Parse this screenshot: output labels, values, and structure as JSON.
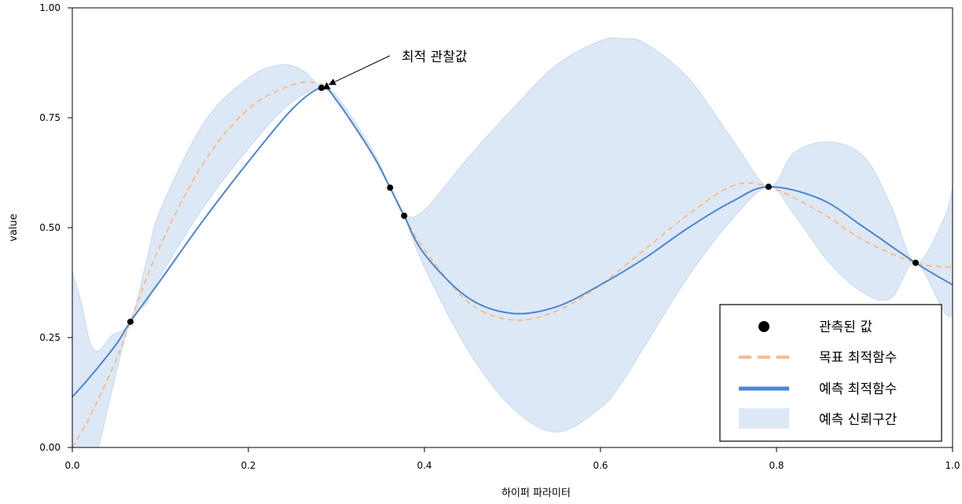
{
  "chart_data": {
    "type": "line",
    "title": "",
    "xlabel": "하이퍼 파라미터",
    "ylabel": "value",
    "xlim": [
      0,
      1
    ],
    "ylim": [
      0,
      1
    ],
    "xticks": [
      0.0,
      0.2,
      0.4,
      0.6,
      0.8,
      1.0
    ],
    "xtick_labels": [
      "0.0",
      "0.2",
      "0.4",
      "0.6",
      "0.8",
      "1.0"
    ],
    "yticks": [
      0.0,
      0.25,
      0.5,
      0.75,
      1.0
    ],
    "ytick_labels": [
      "0.00",
      "0.25",
      "0.50",
      "0.75",
      "1.00"
    ],
    "grid": false,
    "legend_position": "bottom-right",
    "colors": {
      "observed": "#000000",
      "target": "#f8bc8c",
      "predicted": "#4a86d2",
      "band": "#dde8f6",
      "band_edge": "#c6d9ef"
    },
    "series": [
      {
        "name": "관측된 값",
        "kind": "scatter",
        "x": [
          0.066,
          0.283,
          0.361,
          0.377,
          0.791,
          0.958
        ],
        "y": [
          0.286,
          0.818,
          0.591,
          0.527,
          0.593,
          0.42
        ]
      },
      {
        "name": "목표 최적함수",
        "kind": "line-dashed",
        "x": [
          0.0,
          0.02,
          0.05,
          0.066,
          0.1,
          0.15,
          0.2,
          0.25,
          0.283,
          0.3,
          0.34,
          0.361,
          0.377,
          0.4,
          0.45,
          0.5,
          0.55,
          0.6,
          0.65,
          0.7,
          0.75,
          0.791,
          0.85,
          0.9,
          0.958,
          1.0
        ],
        "y": [
          0.0,
          0.07,
          0.2,
          0.286,
          0.46,
          0.65,
          0.77,
          0.825,
          0.826,
          0.79,
          0.67,
          0.59,
          0.527,
          0.45,
          0.33,
          0.29,
          0.31,
          0.37,
          0.45,
          0.53,
          0.595,
          0.593,
          0.535,
          0.47,
          0.42,
          0.41
        ]
      },
      {
        "name": "예측 최적함수",
        "kind": "line",
        "x": [
          0.0,
          0.02,
          0.05,
          0.066,
          0.1,
          0.15,
          0.2,
          0.25,
          0.283,
          0.3,
          0.34,
          0.361,
          0.377,
          0.4,
          0.45,
          0.5,
          0.55,
          0.6,
          0.65,
          0.7,
          0.75,
          0.791,
          0.85,
          0.9,
          0.958,
          1.0
        ],
        "y": [
          0.115,
          0.16,
          0.235,
          0.286,
          0.38,
          0.52,
          0.65,
          0.77,
          0.818,
          0.79,
          0.67,
          0.591,
          0.527,
          0.44,
          0.34,
          0.305,
          0.32,
          0.37,
          0.43,
          0.5,
          0.56,
          0.593,
          0.565,
          0.5,
          0.42,
          0.37
        ]
      },
      {
        "name": "예측 신뢰구간",
        "kind": "band",
        "x": [
          0.0,
          0.01,
          0.02,
          0.03,
          0.045,
          0.066,
          0.085,
          0.1,
          0.15,
          0.2,
          0.235,
          0.26,
          0.283,
          0.3,
          0.34,
          0.361,
          0.377,
          0.4,
          0.45,
          0.5,
          0.55,
          0.6,
          0.625,
          0.65,
          0.7,
          0.75,
          0.791,
          0.82,
          0.86,
          0.9,
          0.93,
          0.958,
          0.99,
          1.0
        ],
        "lower": [
          -0.17,
          -0.14,
          -0.07,
          0.0,
          0.13,
          0.286,
          0.33,
          0.39,
          0.55,
          0.68,
          0.76,
          0.8,
          0.818,
          0.79,
          0.67,
          0.591,
          0.527,
          0.41,
          0.22,
          0.09,
          0.035,
          0.09,
          0.15,
          0.23,
          0.39,
          0.52,
          0.593,
          0.53,
          0.42,
          0.35,
          0.34,
          0.42,
          0.31,
          0.3
        ],
        "upper": [
          0.4,
          0.33,
          0.24,
          0.22,
          0.255,
          0.286,
          0.43,
          0.54,
          0.74,
          0.84,
          0.87,
          0.86,
          0.818,
          0.8,
          0.68,
          0.592,
          0.53,
          0.54,
          0.66,
          0.77,
          0.87,
          0.925,
          0.93,
          0.92,
          0.84,
          0.7,
          0.593,
          0.67,
          0.695,
          0.66,
          0.55,
          0.42,
          0.52,
          0.59
        ]
      }
    ],
    "best_marker": {
      "x": 0.289,
      "y": 0.822
    },
    "annotation": {
      "text": "최적 관찰값",
      "x": 0.289,
      "y": 0.822
    }
  }
}
